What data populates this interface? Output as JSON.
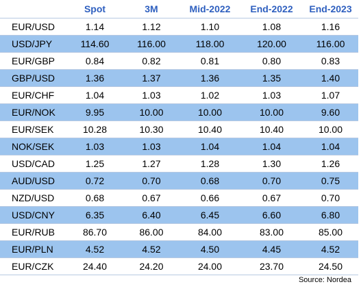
{
  "header": {
    "pair_label": "",
    "columns": [
      "Spot",
      "3M",
      "Mid-2022",
      "End-2022",
      "End-2023"
    ]
  },
  "rows": [
    {
      "pair": "EUR/USD",
      "values": [
        "1.14",
        "1.12",
        "1.10",
        "1.08",
        "1.16"
      ]
    },
    {
      "pair": "USD/JPY",
      "values": [
        "114.60",
        "116.00",
        "118.00",
        "120.00",
        "116.00"
      ]
    },
    {
      "pair": "EUR/GBP",
      "values": [
        "0.84",
        "0.82",
        "0.81",
        "0.80",
        "0.83"
      ]
    },
    {
      "pair": "GBP/USD",
      "values": [
        "1.36",
        "1.37",
        "1.36",
        "1.35",
        "1.40"
      ]
    },
    {
      "pair": "EUR/CHF",
      "values": [
        "1.04",
        "1.03",
        "1.02",
        "1.03",
        "1.07"
      ]
    },
    {
      "pair": "EUR/NOK",
      "values": [
        "9.95",
        "10.00",
        "10.00",
        "10.00",
        "9.60"
      ]
    },
    {
      "pair": "EUR/SEK",
      "values": [
        "10.28",
        "10.30",
        "10.40",
        "10.40",
        "10.00"
      ]
    },
    {
      "pair": "NOK/SEK",
      "values": [
        "1.03",
        "1.03",
        "1.04",
        "1.04",
        "1.04"
      ]
    },
    {
      "pair": "USD/CAD",
      "values": [
        "1.25",
        "1.27",
        "1.28",
        "1.30",
        "1.26"
      ]
    },
    {
      "pair": "AUD/USD",
      "values": [
        "0.72",
        "0.70",
        "0.68",
        "0.70",
        "0.75"
      ]
    },
    {
      "pair": "NZD/USD",
      "values": [
        "0.68",
        "0.67",
        "0.66",
        "0.67",
        "0.70"
      ]
    },
    {
      "pair": "USD/CNY",
      "values": [
        "6.35",
        "6.40",
        "6.45",
        "6.60",
        "6.80"
      ]
    },
    {
      "pair": "EUR/RUB",
      "values": [
        "86.70",
        "86.00",
        "84.00",
        "83.00",
        "85.00"
      ]
    },
    {
      "pair": "EUR/PLN",
      "values": [
        "4.52",
        "4.52",
        "4.50",
        "4.45",
        "4.52"
      ]
    },
    {
      "pair": "EUR/CZK",
      "values": [
        "24.40",
        "24.20",
        "24.00",
        "23.70",
        "24.50"
      ]
    }
  ],
  "source": "Source: Nordea",
  "colors": {
    "header_text": "#2e5fbf",
    "shaded_row": "#9cc4ee",
    "row_border": "#b7c9e2"
  }
}
